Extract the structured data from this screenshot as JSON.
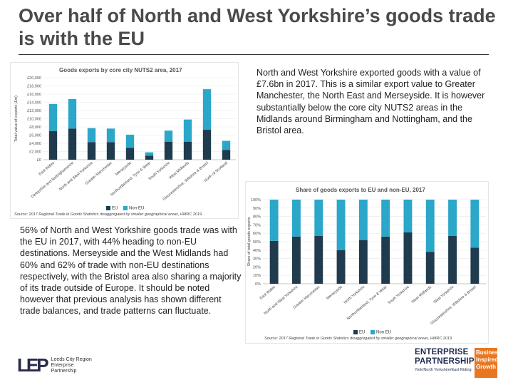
{
  "slide": {
    "title": "Over half of North and West Yorkshire’s goods trade is with the EU",
    "para1": "North and West Yorkshire exported goods with a value of £7.6bn in 2017. This is a similar export value to Greater Manchester, the North East and Merseyside. It is however substantially below the core city NUTS2 areas in the Midlands around Birmingham and Nottingham, and the Bristol area.",
    "para2": "56% of North and West Yorkshire goods trade was with the EU in 2017, with 44% heading to non-EU destinations. Merseyside and the West Midlands had 60% and 62% of trade with non-EU destinations respectively, with the Bristol area also sharing a majority of its trade outside of Europe. It should be noted however that previous analysis has shown different trade balances, and trade patterns can fluctuate."
  },
  "colors": {
    "eu": "#1f3b4d",
    "non_eu": "#2aa7c9"
  },
  "chart_data": [
    {
      "type": "bar",
      "stacked": true,
      "title": "Goods exports by core city NUTS2 area, 2017",
      "ylabel": "Total value of exports (£m)",
      "ylim": [
        0,
        20000
      ],
      "ytick_labels": [
        "£0",
        "£2,000",
        "£4,000",
        "£6,000",
        "£8,000",
        "£10,000",
        "£12,000",
        "£14,000",
        "£16,000",
        "£18,000",
        "£20,000"
      ],
      "categories": [
        "East Wales",
        "Derbyshire and Nottinghamshire",
        "North and West Yorkshire",
        "Greater Manchester",
        "Merseyside",
        "Northumberland, Tyne & Wear",
        "South Yorkshire",
        "West Midlands",
        "Gloucestershire, Wiltshire & Bristol",
        "North of Scotland"
      ],
      "series": [
        {
          "name": "EU",
          "values": [
            7000,
            7600,
            4300,
            4300,
            2900,
            1000,
            4400,
            4400,
            7300,
            2400
          ]
        },
        {
          "name": "Non-EU",
          "values": [
            6600,
            7200,
            3400,
            3300,
            3200,
            800,
            2700,
            5400,
            9900,
            2200
          ]
        }
      ],
      "legend": [
        "EU",
        "Non-EU"
      ],
      "source": "Source: 2017 Regional Trade in Goods Statistics disaggregated by smaller geographical areas, HMRC 2019"
    },
    {
      "type": "bar",
      "stacked": true,
      "title": "Share of goods exports to EU and non-EU, 2017",
      "ylabel": "Share of total goods exports",
      "ylim": [
        0,
        100
      ],
      "ytick_labels": [
        "0%",
        "10%",
        "20%",
        "30%",
        "40%",
        "50%",
        "60%",
        "70%",
        "80%",
        "90%",
        "100%"
      ],
      "categories": [
        "East Wales",
        "North and West Yorkshire",
        "Greater Manchester",
        "Merseyside",
        "North Yorkshire",
        "Northumberland, Tyne & Wear",
        "South Yorkshire",
        "West Midlands",
        "West Yorkshire",
        "Gloucestershire, Wiltshire & Bristol"
      ],
      "series": [
        {
          "name": "EU",
          "values": [
            51,
            56,
            57,
            40,
            52,
            56,
            61,
            38,
            57,
            43
          ]
        },
        {
          "name": "Non-EU",
          "values": [
            49,
            44,
            43,
            60,
            48,
            44,
            39,
            62,
            43,
            57
          ]
        }
      ],
      "legend": [
        "EU",
        "Non EU"
      ],
      "source": "Source: 2017 Regional Trade in Goods Statistics disaggregated by smaller geographical areas, HMRC 2019"
    }
  ],
  "logos": {
    "lcr_mark": "LEP",
    "lcr_line1": "Leeds City Region",
    "lcr_line2": "Enterprise",
    "lcr_line3": "Partnership",
    "ep_line1": "ENTERPRISE",
    "ep_line2": "PARTNERSHIP",
    "ep_line3": "York/North Yorkshire/East Riding",
    "ep_badge1": "Business",
    "ep_badge2": "Inspired",
    "ep_badge3": "Growth"
  }
}
